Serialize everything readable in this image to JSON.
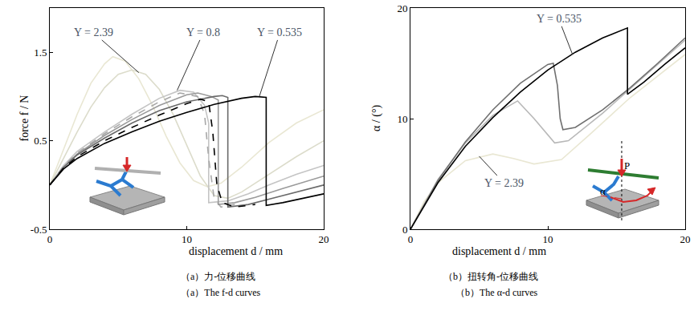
{
  "chart_data": [
    {
      "type": "line",
      "x_label": "displacement d / mm",
      "y_label": "force f / N",
      "caption_zh": "（a）力-位移曲线",
      "caption_en": "（a）The f-d curves",
      "xlim": [
        0,
        20
      ],
      "xticks": [
        0,
        10,
        20
      ],
      "ylim": [
        -0.5,
        2.0
      ],
      "yticks": [
        -0.5,
        0.5,
        1.5
      ],
      "grid": false,
      "series": [
        {
          "color": "#e9e7d3",
          "line_style": "solid",
          "x": [
            0,
            1,
            2,
            3,
            4,
            4.6,
            5.5,
            6.5,
            7.5,
            8.5,
            9.5,
            10.5,
            11.5,
            12.5,
            14,
            16,
            18,
            20
          ],
          "values": [
            0,
            0.4,
            0.8,
            1.15,
            1.37,
            1.45,
            1.4,
            1.2,
            0.9,
            0.55,
            0.25,
            0.05,
            -0.02,
            0.02,
            0.2,
            0.48,
            0.7,
            0.85
          ]
        },
        {
          "color": "#dcdccb",
          "line_style": "solid",
          "x": [
            0,
            1,
            2,
            3,
            4,
            5,
            6,
            7,
            8,
            9,
            10,
            11,
            12,
            13,
            14,
            16,
            18,
            20
          ],
          "values": [
            0,
            0.3,
            0.6,
            0.88,
            1.1,
            1.25,
            1.3,
            1.25,
            1.08,
            0.8,
            0.45,
            0.1,
            -0.12,
            -0.15,
            -0.08,
            0.12,
            0.32,
            0.5
          ]
        },
        {
          "color": "#c4c4c4",
          "line_style": "solid",
          "x": [
            0,
            1,
            2,
            4,
            6,
            8,
            9.5,
            10.5,
            11.3,
            11.6,
            11.6,
            13,
            14.5,
            16,
            18,
            20
          ],
          "values": [
            0,
            0.22,
            0.38,
            0.6,
            0.8,
            0.98,
            1.07,
            1.05,
            0.9,
            0.7,
            -0.2,
            -0.18,
            -0.1,
            0,
            0.12,
            0.22
          ]
        },
        {
          "color": "#a8a8a8",
          "line_style": "dash",
          "x": [
            0,
            1,
            2,
            4,
            6,
            8,
            9.5,
            10.8,
            11.3,
            11.6,
            12.0,
            12.5,
            13.5
          ],
          "values": [
            0,
            0.21,
            0.36,
            0.58,
            0.77,
            0.94,
            1.04,
            1.0,
            0.8,
            0.3,
            -0.15,
            -0.25,
            -0.22
          ]
        },
        {
          "color": "#9a9a9a",
          "line_style": "solid",
          "x": [
            0,
            1,
            2,
            4,
            6,
            8,
            10,
            10.8,
            11.8,
            12.3,
            12.3,
            13.5,
            15,
            17,
            20
          ],
          "values": [
            0,
            0.2,
            0.35,
            0.56,
            0.74,
            0.9,
            1.02,
            1.04,
            1.0,
            0.96,
            -0.22,
            -0.2,
            -0.14,
            -0.04,
            0.1
          ]
        },
        {
          "color": "#6a6a6a",
          "line_style": "solid",
          "x": [
            0,
            1,
            2,
            4,
            6,
            8,
            10,
            12,
            12.6,
            13.0,
            13.0,
            14.5,
            16,
            18,
            20
          ],
          "values": [
            0,
            0.2,
            0.34,
            0.53,
            0.7,
            0.84,
            0.94,
            1.0,
            1.01,
            0.99,
            -0.25,
            -0.22,
            -0.16,
            -0.08,
            0.0
          ]
        },
        {
          "color": "#000000",
          "line_style": "dash",
          "x": [
            0,
            1,
            2,
            4,
            6,
            8,
            10,
            11,
            11.6,
            11.9,
            12.2,
            12.6,
            13.5,
            15
          ],
          "values": [
            0,
            0.19,
            0.32,
            0.5,
            0.65,
            0.79,
            0.92,
            0.97,
            0.94,
            0.6,
            0.0,
            -0.2,
            -0.25,
            -0.22
          ]
        },
        {
          "color": "#000000",
          "line_style": "solid",
          "x": [
            0,
            1,
            2,
            4,
            6,
            8,
            10,
            12,
            14,
            15,
            15.8,
            15.8,
            17,
            18.5,
            20
          ],
          "values": [
            0,
            0.18,
            0.3,
            0.47,
            0.6,
            0.72,
            0.82,
            0.91,
            0.98,
            1.0,
            0.99,
            -0.23,
            -0.2,
            -0.15,
            -0.1
          ]
        }
      ],
      "annotations": [
        {
          "text": "Y = 2.39",
          "text_x": 3.2,
          "text_y": 1.72,
          "x": 6.5,
          "y": 1.27
        },
        {
          "text": "Y = 0.8",
          "text_x": 11.2,
          "text_y": 1.72,
          "x": 9.3,
          "y": 1.07
        },
        {
          "text": "Y = 0.535",
          "text_x": 16.8,
          "text_y": 1.72,
          "x": 15.3,
          "y": 1.0
        }
      ]
    },
    {
      "type": "line",
      "x_label": "displacement d / mm",
      "y_label": "α / (°)",
      "caption_zh": "（b）扭转角-位移曲线",
      "caption_en": "（b）The α-d curves",
      "xlim": [
        0,
        20
      ],
      "xticks": [
        0,
        10,
        20
      ],
      "ylim": [
        0,
        20
      ],
      "yticks": [
        0,
        10,
        20
      ],
      "grid": false,
      "series": [
        {
          "color": "#e9e7d3",
          "line_style": "solid",
          "x": [
            0,
            1,
            2,
            4,
            6,
            7.5,
            9,
            11,
            13,
            16,
            20
          ],
          "values": [
            0,
            2.5,
            4.2,
            6.2,
            6.8,
            6.4,
            5.9,
            6.3,
            8.5,
            11.9,
            15.8
          ]
        },
        {
          "color": "#b8b8b8",
          "line_style": "solid",
          "x": [
            0,
            2,
            4,
            6,
            7.8,
            9,
            10.5,
            11.5,
            14,
            17,
            20
          ],
          "values": [
            0,
            4.5,
            7.8,
            10.3,
            11.6,
            10.0,
            7.8,
            8.0,
            10.5,
            13.8,
            17.1
          ]
        },
        {
          "color": "#707070",
          "line_style": "solid",
          "x": [
            0,
            2,
            4,
            6,
            8,
            10,
            10.4,
            10.7,
            10.9,
            11.1,
            12,
            14,
            16,
            18,
            20
          ],
          "values": [
            0,
            4.4,
            7.9,
            10.8,
            13.2,
            14.9,
            15.0,
            13.0,
            10.0,
            9.0,
            9.2,
            10.8,
            12.8,
            15.0,
            17.3
          ]
        },
        {
          "color": "#000000",
          "line_style": "solid",
          "x": [
            0,
            2,
            4,
            6,
            8,
            10,
            12,
            14,
            15.8,
            15.8,
            17,
            18.5,
            20
          ],
          "values": [
            0,
            4.2,
            7.5,
            10.1,
            12.4,
            14.4,
            16.0,
            17.3,
            18.2,
            12.2,
            13.3,
            14.9,
            16.4
          ]
        }
      ],
      "annotations": [
        {
          "text": "Y = 0.535",
          "text_x": 10.8,
          "text_y": 19.0,
          "x": 11.8,
          "y": 15.8
        },
        {
          "text": "Y = 2.39",
          "text_x": 6.8,
          "text_y": 4.2,
          "x": 5.0,
          "y": 6.6
        }
      ],
      "inset_labels": [
        "P",
        "α"
      ]
    }
  ]
}
